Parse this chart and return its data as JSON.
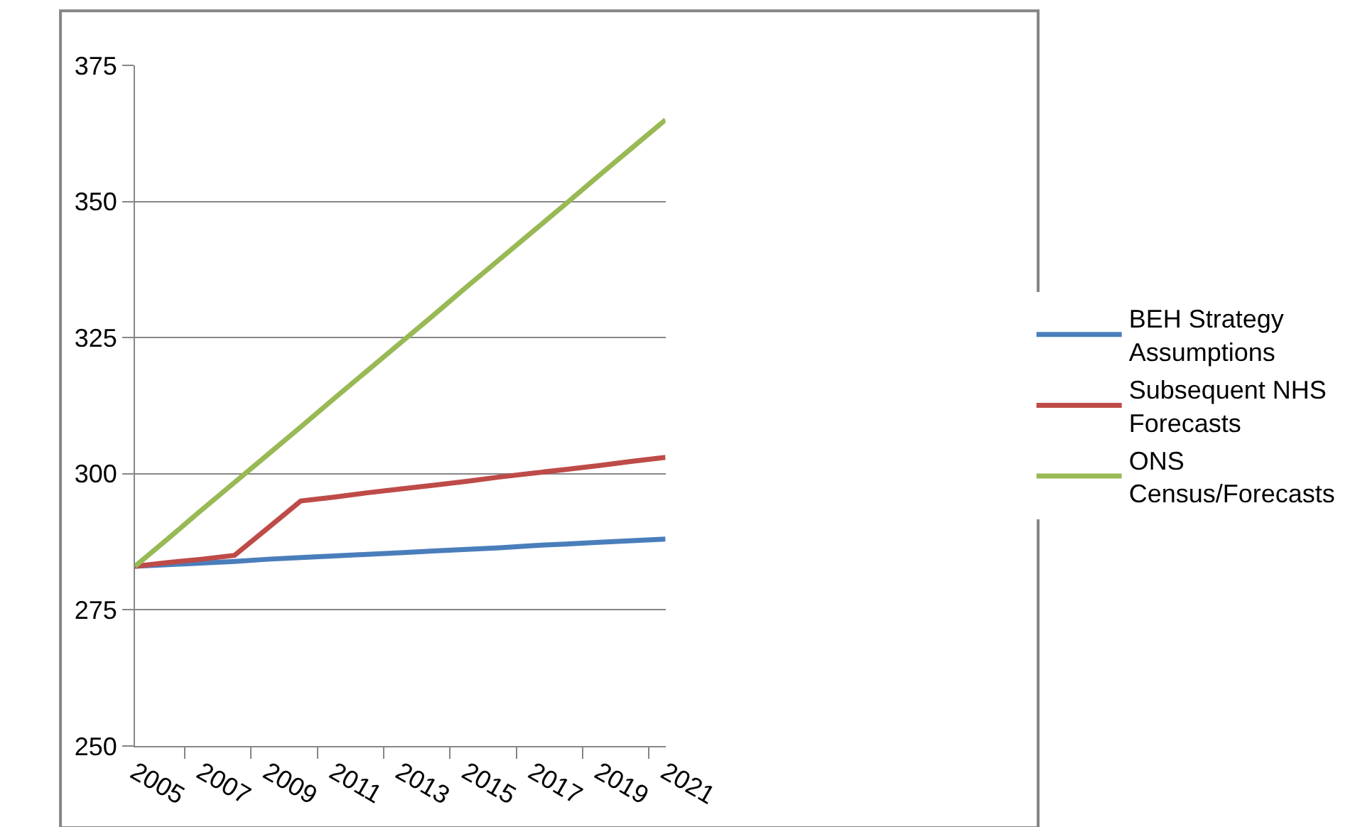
{
  "chart_data": {
    "type": "line",
    "categories": [
      "2005",
      null,
      "2007",
      null,
      "2009",
      null,
      "2011",
      null,
      "2013",
      null,
      "2015",
      null,
      "2017",
      null,
      "2019",
      null,
      "2021"
    ],
    "series": [
      {
        "name": "BEH Strategy Assumptions",
        "color": "#4a7ebb",
        "values": [
          283,
          283.3,
          283.6,
          283.9,
          284.3,
          284.6,
          284.9,
          285.2,
          285.5,
          285.8,
          286.1,
          286.4,
          286.8,
          287.1,
          287.4,
          287.7,
          288
        ]
      },
      {
        "name": "Subsequent NHS Forecasts",
        "color": "#be4b48",
        "values": [
          283,
          283.7,
          284.3,
          285,
          290,
          295,
          295.7,
          296.5,
          297.2,
          297.9,
          298.6,
          299.4,
          300.1,
          300.8,
          301.5,
          302.3,
          303
        ]
      },
      {
        "name": "ONS Census/Forecasts",
        "color": "#98b954",
        "values": [
          283,
          288.1,
          293.3,
          298.4,
          303.5,
          308.6,
          313.8,
          318.9,
          324,
          329.1,
          334.3,
          339.4,
          344.5,
          349.6,
          354.8,
          359.9,
          365
        ]
      }
    ],
    "ylim": [
      250,
      375
    ],
    "yticks": [
      250,
      275,
      300,
      325,
      350,
      375
    ],
    "grid": "y",
    "legend": "right",
    "marker": "none",
    "line_style": "solid"
  }
}
